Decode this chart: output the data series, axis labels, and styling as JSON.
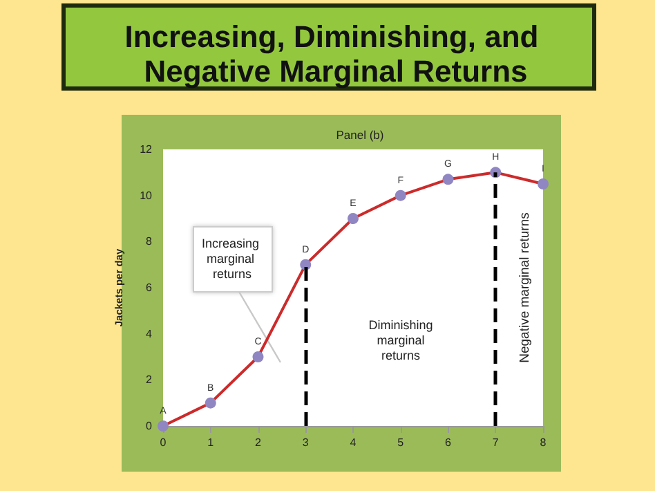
{
  "chart_data": {
    "type": "line",
    "title": "Increasing, Diminishing, and Negative Marginal Returns",
    "subtitle": "Panel (b)",
    "ylabel": "Jackets per day",
    "x": [
      0,
      1,
      2,
      3,
      4,
      5,
      6,
      7,
      8
    ],
    "series": [
      {
        "color": "#cc2b2b",
        "values": [
          0,
          1,
          3,
          7,
          9,
          10,
          10.7,
          11,
          10.5
        ]
      }
    ],
    "xlim": [
      0,
      8
    ],
    "xticks": [
      0,
      1,
      2,
      3,
      4,
      5,
      6,
      7,
      8
    ],
    "ylim": [
      0,
      12
    ],
    "yticks": [
      0,
      2,
      4,
      6,
      8,
      10,
      12
    ],
    "grid": false,
    "marker": "circle",
    "line_style": "solid",
    "ref_lines": [
      {
        "axis": "x",
        "value": 3,
        "color": "#000000",
        "line_style": "dashed"
      },
      {
        "axis": "x",
        "value": 7,
        "color": "#000000",
        "line_style": "dashed"
      }
    ],
    "annotations": [
      {
        "text": "A",
        "x": 0,
        "y": 0
      },
      {
        "text": "B",
        "x": 1,
        "y": 1
      },
      {
        "text": "C",
        "x": 2,
        "y": 3
      },
      {
        "text": "D",
        "x": 3,
        "y": 7
      },
      {
        "text": "E",
        "x": 4,
        "y": 9
      },
      {
        "text": "F",
        "x": 5,
        "y": 10
      },
      {
        "text": "G",
        "x": 6,
        "y": 10.7
      },
      {
        "text": "H",
        "x": 7,
        "y": 11
      },
      {
        "text": "I",
        "x": 8,
        "y": 10.5
      },
      "Increasing marginal returns",
      "Diminishing marginal returns",
      "Negative marginal returns"
    ]
  }
}
